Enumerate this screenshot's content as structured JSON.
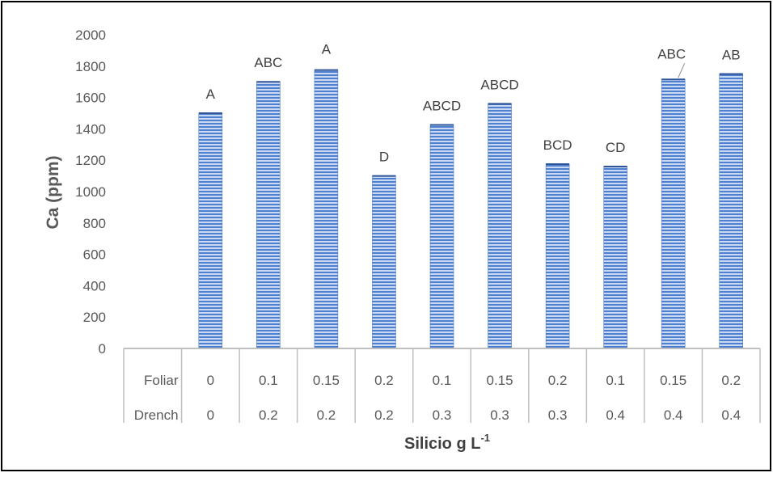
{
  "chart_data": {
    "type": "bar",
    "title": "",
    "ylabel": "Ca  (ppm)",
    "xlabel": "Silicio g L",
    "xlabel_superscript": "-1",
    "ylim": [
      0,
      2000
    ],
    "yticks": [
      0,
      200,
      400,
      600,
      800,
      1000,
      1200,
      1400,
      1600,
      1800,
      2000
    ],
    "grid": false,
    "legend": "none",
    "row_labels": [
      "Foliar",
      "Drench"
    ],
    "categories": [
      {
        "foliar": "0",
        "drench": "0"
      },
      {
        "foliar": "0.1",
        "drench": "0.2"
      },
      {
        "foliar": "0.15",
        "drench": "0.2"
      },
      {
        "foliar": "0.2",
        "drench": "0.2"
      },
      {
        "foliar": "0.1",
        "drench": "0.3"
      },
      {
        "foliar": "0.15",
        "drench": "0.3"
      },
      {
        "foliar": "0.2",
        "drench": "0.3"
      },
      {
        "foliar": "0.1",
        "drench": "0.4"
      },
      {
        "foliar": "0.15",
        "drench": "0.4"
      },
      {
        "foliar": "0.2",
        "drench": "0.4"
      }
    ],
    "values": [
      1500,
      1700,
      1775,
      1100,
      1425,
      1560,
      1175,
      1160,
      1715,
      1750
    ],
    "letters": [
      "A",
      "ABC",
      "A",
      "D",
      "ABCD",
      "ABCD",
      "BCD",
      "CD",
      "ABC",
      "AB"
    ],
    "colors": {
      "bar_fill": "#4f7fcf",
      "bar_stripe": "#c9d9f2",
      "axis_text": "#595959",
      "axis_title": "#595959",
      "table_lines": "#bfbfbf",
      "label_text": "#404040",
      "frame": "#000000"
    }
  }
}
